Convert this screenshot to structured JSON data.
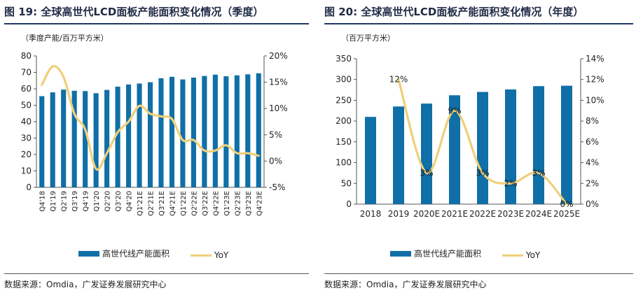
{
  "left": {
    "title": "图 19: 全球高世代LCD面板产能面积变化情况（季度）",
    "unit": "（季度产能/百万平方米）",
    "legend_bar": "高世代线产能面积",
    "legend_line": "YoY",
    "source": "数据来源：Omdia，广发证券发展研究中心"
  },
  "right": {
    "title": "图 20: 全球高世代LCD面板产能面积变化情况（年度）",
    "unit": "（百万平方米）",
    "legend_bar": "高世代线产能面积",
    "legend_line": "YoY",
    "source": "数据来源：Omdia，广发证券发展研究中心"
  },
  "colors": {
    "bar": "#0f6fa6",
    "line": "#f0cf7a",
    "title": "#1f2a44"
  },
  "chart_data": [
    {
      "type": "bar",
      "categories": [
        "Q4'18",
        "Q1'19",
        "Q2'19",
        "Q3'19",
        "Q4'19",
        "Q1'20",
        "Q2'20",
        "Q3'20",
        "Q4'20",
        "Q1'21E",
        "Q2'21E",
        "Q3'21E",
        "Q4'21E",
        "Q1'22E",
        "Q2'22E",
        "Q3'22E",
        "Q4'22E",
        "Q1'23E",
        "Q2'23E",
        "Q3'23E",
        "Q4'23E"
      ],
      "series": [
        {
          "name": "高世代线产能面积",
          "type": "bar",
          "axis": "left",
          "values": [
            55.5,
            57.8,
            59.5,
            58.8,
            58.6,
            57.3,
            59.3,
            61.3,
            62.6,
            63.2,
            64.0,
            66.4,
            67.3,
            65.7,
            66.8,
            67.8,
            68.6,
            67.6,
            68.2,
            68.8,
            69.4
          ]
        },
        {
          "name": "YoY",
          "type": "line",
          "axis": "right",
          "values": [
            14.5,
            18.0,
            16.0,
            9.0,
            6.0,
            -1.5,
            1.5,
            5.5,
            7.5,
            10.5,
            9.0,
            8.5,
            8.0,
            4.0,
            4.0,
            2.0,
            2.0,
            3.0,
            1.5,
            1.5,
            1.0
          ]
        }
      ],
      "y_left": {
        "min": 0,
        "max": 80,
        "step": 10,
        "ticks": [
          "0",
          "10",
          "20",
          "30",
          "40",
          "50",
          "60",
          "70",
          "80"
        ]
      },
      "y_right": {
        "min": -5,
        "max": 20,
        "step": 5,
        "ticks": [
          "-5%",
          "0%",
          "5%",
          "10%",
          "15%",
          "20%"
        ]
      },
      "data_labels": [],
      "grid": false,
      "legend_position": "bottom"
    },
    {
      "type": "bar",
      "categories": [
        "2018",
        "2019",
        "2020E",
        "2021E",
        "2022E",
        "2023E",
        "2024E",
        "2025E"
      ],
      "series": [
        {
          "name": "高世代线产能面积",
          "type": "bar",
          "axis": "left",
          "values": [
            210,
            235,
            242,
            262,
            270,
            276,
            284,
            285
          ]
        },
        {
          "name": "YoY",
          "type": "line",
          "axis": "right",
          "values": [
            null,
            12,
            3,
            9,
            3,
            2,
            3,
            0
          ]
        }
      ],
      "y_left": {
        "min": 0,
        "max": 350,
        "step": 50,
        "ticks": [
          "0",
          "50",
          "100",
          "150",
          "200",
          "250",
          "300",
          "350"
        ]
      },
      "y_right": {
        "min": 0,
        "max": 14,
        "step": 2,
        "ticks": [
          "0%",
          "2%",
          "4%",
          "6%",
          "8%",
          "10%",
          "12%",
          "14%"
        ]
      },
      "data_labels": [
        "",
        "12%",
        "3%",
        "9%",
        "3%",
        "2%",
        "3%",
        "0%"
      ],
      "grid": false,
      "legend_position": "bottom"
    }
  ]
}
